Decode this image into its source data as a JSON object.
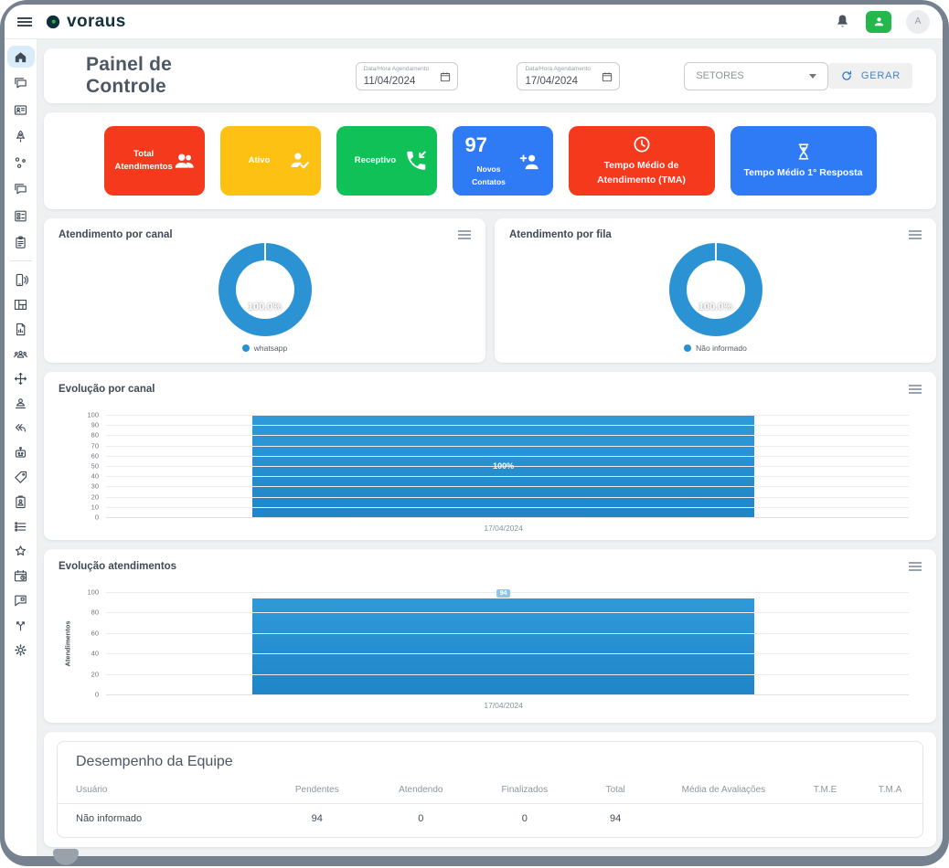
{
  "topbar": {
    "brand": "voraus",
    "avatar_letter": "A"
  },
  "header": {
    "title": "Painel de Controle",
    "date_from_label": "Data/Hora Agendamento",
    "date_from_value": "11/04/2024",
    "date_to_label": "Data/Hora Agendamento",
    "date_to_value": "17/04/2024",
    "sectors_value": "SETORES",
    "generate_label": "GERAR"
  },
  "kpis": [
    {
      "label": "Total Atendimentos",
      "color": "#f5391c",
      "icon": "people-icon"
    },
    {
      "label": "Ativo",
      "color": "#fcc113",
      "icon": "person-check-icon"
    },
    {
      "label": "Receptivo",
      "color": "#0fc157",
      "icon": "phone-incoming-icon"
    },
    {
      "label": "Novos Contatos",
      "value": "97",
      "color": "#2e7bf5",
      "icon": "person-add-icon"
    },
    {
      "label": "Tempo Médio de Atendimento (TMA)",
      "color": "#f5391c",
      "icon": "clock-icon"
    },
    {
      "label": "Tempo Médio 1° Resposta",
      "color": "#2e7bf5",
      "icon": "hourglass-icon"
    }
  ],
  "chart_data": [
    {
      "type": "pie",
      "title": "Atendimento por canal",
      "labels": [
        "whatsapp"
      ],
      "values": [
        100.0
      ],
      "slice_label": "100.0%",
      "color": "#2b93d4",
      "legend_position": "bottom"
    },
    {
      "type": "pie",
      "title": "Atendimento por fila",
      "labels": [
        "Não informado"
      ],
      "values": [
        100.0
      ],
      "slice_label": "100.0%",
      "color": "#2b93d4",
      "legend_position": "bottom"
    },
    {
      "type": "bar",
      "title": "Evolução por canal",
      "categories": [
        "17/04/2024"
      ],
      "values": [
        100
      ],
      "bar_label": "100%",
      "xlabel": "",
      "ylabel": "",
      "ylim": [
        0,
        100
      ],
      "yticks": [
        0,
        10,
        20,
        30,
        40,
        50,
        60,
        70,
        80,
        90,
        100
      ],
      "grid": true,
      "color": "#2491d3"
    },
    {
      "type": "bar",
      "title": "Evolução atendimentos",
      "categories": [
        "17/04/2024"
      ],
      "values": [
        94
      ],
      "bar_label": "94",
      "xlabel": "",
      "ylabel": "Atendimentos",
      "ylim": [
        0,
        100
      ],
      "yticks": [
        0,
        20,
        40,
        60,
        80,
        100
      ],
      "grid": true,
      "color": "#2491d3"
    }
  ],
  "team_table": {
    "title": "Desempenho da Equipe",
    "columns": [
      "Usuário",
      "Pendentes",
      "Atendendo",
      "Finalizados",
      "Total",
      "Média de Avaliações",
      "T.M.E",
      "T.M.A"
    ],
    "rows": [
      [
        "Não informado",
        "94",
        "0",
        "0",
        "94",
        "",
        "",
        ""
      ]
    ]
  },
  "sidebar": {
    "active": "home",
    "items": [
      "home",
      "chats",
      "contacts",
      "campaigns",
      "connections",
      "internal-chat",
      "kanban",
      "tasks",
      "calls",
      "dashboard",
      "reports",
      "teams",
      "transfers",
      "agents",
      "quick-replies",
      "chatbot",
      "tags",
      "forms",
      "lists",
      "ratings",
      "schedules",
      "feedback",
      "flows",
      "settings"
    ]
  },
  "colors": {
    "accent_blue": "#2e7bf5",
    "chart_blue": "#2b93d4",
    "red": "#f5391c",
    "yellow": "#fcc113",
    "green": "#0fc157",
    "frame": "#76818f"
  }
}
